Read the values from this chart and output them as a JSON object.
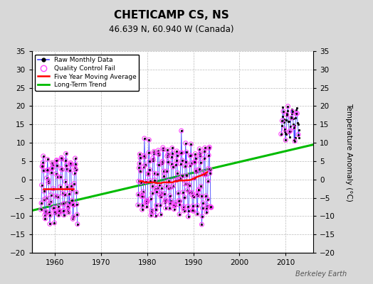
{
  "title": "CHETICAMP CS, NS",
  "subtitle": "46.639 N, 60.940 W (Canada)",
  "ylabel": "Temperature Anomaly (°C)",
  "credit": "Berkeley Earth",
  "ylim": [
    -20,
    35
  ],
  "yticks": [
    -20,
    -15,
    -10,
    -5,
    0,
    5,
    10,
    15,
    20,
    25,
    30,
    35
  ],
  "xlim": [
    1955,
    2016
  ],
  "xticks": [
    1960,
    1970,
    1980,
    1990,
    2000,
    2010
  ],
  "bg_color": "#d8d8d8",
  "plot_bg_color": "#ffffff",
  "trend": {
    "years": [
      1955,
      2016
    ],
    "values": [
      -8.5,
      9.5
    ]
  },
  "moving_avg_seg1": {
    "years": [
      1957.5,
      1958.0,
      1958.5,
      1959.0,
      1959.5,
      1960.0,
      1960.5,
      1961.0,
      1961.5,
      1962.0,
      1962.5,
      1963.0,
      1963.5,
      1964.0
    ],
    "values": [
      -2.5,
      -2.5,
      -2.5,
      -2.5,
      -2.5,
      -2.5,
      -2.5,
      -2.5,
      -2.5,
      -2.5,
      -2.5,
      -2.5,
      -2.5,
      -2.5
    ]
  },
  "moving_avg_seg2": {
    "years": [
      1978.5,
      1979.0,
      1979.5,
      1980.0,
      1980.5,
      1981.0,
      1981.5,
      1982.0,
      1982.5,
      1983.0,
      1983.5,
      1984.0,
      1984.5,
      1985.0,
      1985.5,
      1986.0,
      1986.5,
      1987.0,
      1987.5,
      1988.0,
      1988.5,
      1989.0,
      1989.5,
      1990.0,
      1990.5,
      1991.0,
      1991.5,
      1992.5,
      1993.0
    ],
    "values": [
      -0.5,
      -0.5,
      -0.8,
      -0.8,
      -0.8,
      -0.8,
      -0.8,
      -1.0,
      -1.0,
      -1.0,
      -0.8,
      -0.8,
      -0.8,
      -0.8,
      -0.8,
      -0.5,
      -0.5,
      -0.3,
      -0.3,
      -0.3,
      -0.2,
      -0.2,
      -0.1,
      0.2,
      0.5,
      0.8,
      1.0,
      1.5,
      2.0
    ]
  },
  "colors": {
    "raw": "#4444ff",
    "raw_marker": "#000000",
    "qc": "#ff44ff",
    "moving_avg": "#ff0000",
    "trend": "#00bb00"
  }
}
